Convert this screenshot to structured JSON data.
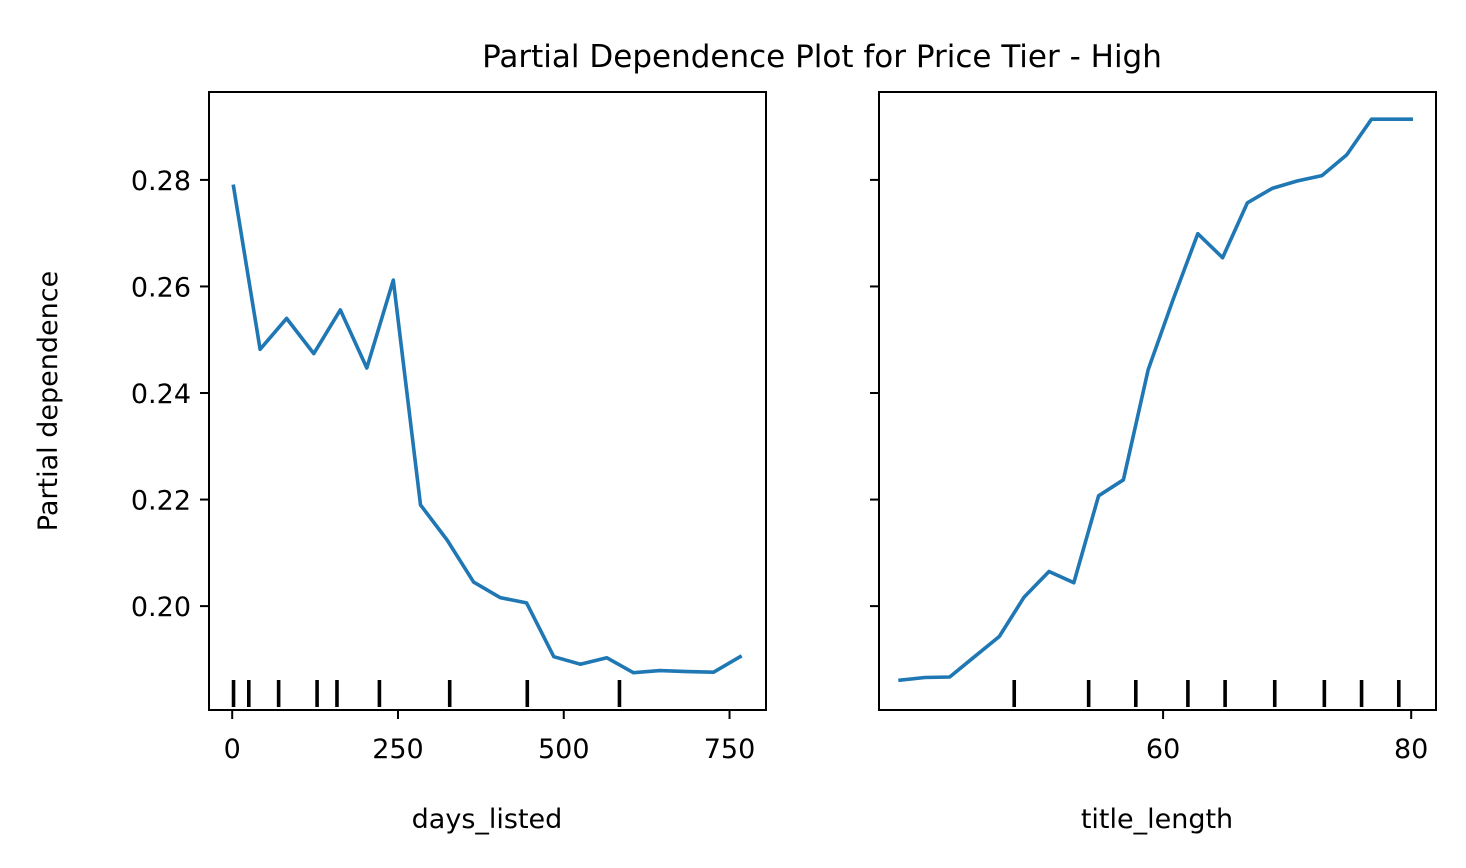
{
  "figure": {
    "title": "Partial Dependence Plot for Price Tier - High",
    "ylabel": "Partial dependence",
    "line_color": "#1f77b4"
  },
  "chart_data": [
    {
      "type": "line",
      "title": "",
      "xlabel": "days_listed",
      "ylabel": "Partial dependence",
      "xlim": [
        -35,
        805
      ],
      "ylim": [
        0.1805,
        0.2965
      ],
      "x_ticks": [
        0,
        250,
        500,
        750
      ],
      "x_tick_labels": [
        "0",
        "250",
        "500",
        "750"
      ],
      "y_ticks": [
        0.2,
        0.22,
        0.24,
        0.26,
        0.28
      ],
      "y_tick_labels": [
        "0.20",
        "0.22",
        "0.24",
        "0.26",
        "0.28"
      ],
      "grid": false,
      "series": [
        {
          "color": "#1f77b4",
          "x": [
            2,
            42,
            82,
            123,
            163,
            203,
            243,
            284,
            324,
            364,
            404,
            444,
            485,
            525,
            565,
            605,
            645,
            686,
            726,
            766
          ],
          "y": [
            0.2788,
            0.2482,
            0.254,
            0.2474,
            0.2556,
            0.2447,
            0.2612,
            0.219,
            0.2124,
            0.2045,
            0.2016,
            0.2006,
            0.1905,
            0.1891,
            0.1903,
            0.1875,
            0.1879,
            0.1877,
            0.1876,
            0.1905
          ]
        }
      ],
      "rug_ticks": [
        2,
        25,
        70,
        128,
        158,
        222,
        328,
        445,
        584
      ]
    },
    {
      "type": "line",
      "title": "",
      "xlabel": "title_length",
      "ylabel": "",
      "xlim": [
        37.1,
        82.0
      ],
      "ylim": [
        0.1805,
        0.2965
      ],
      "x_ticks": [
        60,
        80
      ],
      "x_tick_labels": [
        "60",
        "80"
      ],
      "y_ticks": [
        0.2,
        0.22,
        0.24,
        0.26,
        0.28
      ],
      "y_tick_labels": [],
      "grid": false,
      "series": [
        {
          "color": "#1f77b4",
          "x": [
            38.8,
            40.8,
            42.8,
            44.8,
            46.8,
            48.8,
            50.8,
            52.8,
            54.8,
            56.8,
            58.8,
            60.8,
            62.8,
            64.8,
            66.8,
            68.8,
            70.8,
            72.8,
            74.8,
            76.8,
            78.8,
            80.0
          ],
          "y": [
            0.1861,
            0.1866,
            0.1867,
            0.1905,
            0.1943,
            0.2017,
            0.2065,
            0.2044,
            0.2207,
            0.2237,
            0.2444,
            0.2575,
            0.2699,
            0.2654,
            0.2757,
            0.2784,
            0.2798,
            0.2808,
            0.2847,
            0.2914,
            0.2914,
            0.2914
          ]
        }
      ],
      "rug_ticks": [
        48,
        54,
        57.8,
        62,
        65,
        69,
        73,
        76,
        79
      ]
    }
  ]
}
